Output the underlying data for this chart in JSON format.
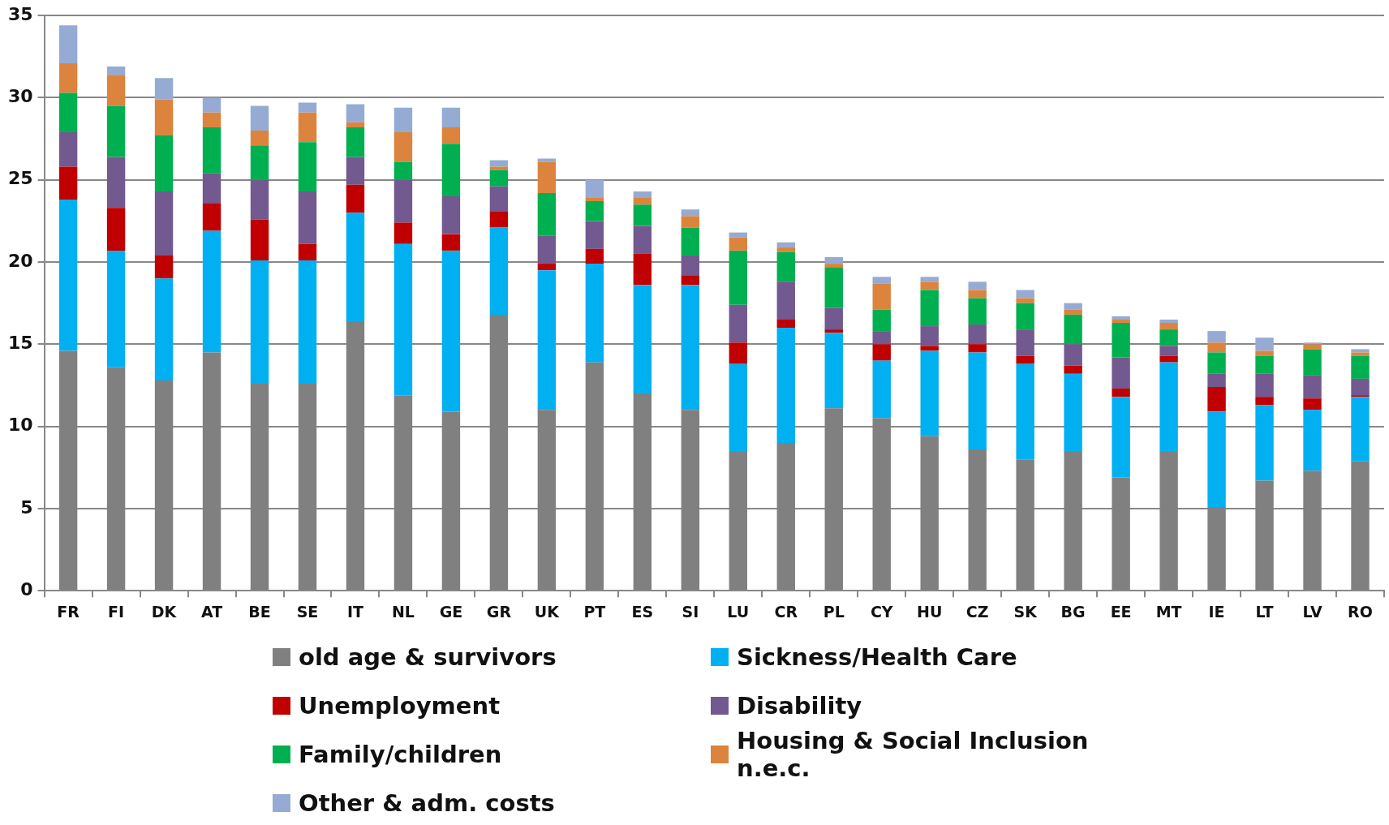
{
  "chart_data": {
    "type": "bar",
    "stacked": true,
    "grid": "y",
    "legend": "bottom",
    "categories": [
      "FR",
      "FI",
      "DK",
      "AT",
      "BE",
      "SE",
      "IT",
      "NL",
      "GE",
      "GR",
      "UK",
      "PT",
      "ES",
      "SI",
      "LU",
      "CR",
      "PL",
      "CY",
      "HU",
      "CZ",
      "SK",
      "BG",
      "EE",
      "MT",
      "IE",
      "LT",
      "LV",
      "RO"
    ],
    "ylim": [
      0,
      35
    ],
    "yticks": [
      0,
      5,
      10,
      15,
      20,
      25,
      30,
      35
    ],
    "series": [
      {
        "name": "old age & survivors",
        "color": "#808080",
        "values": [
          14.6,
          13.6,
          12.8,
          14.5,
          12.6,
          12.6,
          16.4,
          11.9,
          10.9,
          16.8,
          11.0,
          13.9,
          12.0,
          11.0,
          8.5,
          9.0,
          11.1,
          10.5,
          9.4,
          8.6,
          8.0,
          8.5,
          6.9,
          8.5,
          5.1,
          6.7,
          7.3,
          7.9
        ]
      },
      {
        "name": "Sickness/Health Care",
        "color": "#00b0f0",
        "values": [
          9.2,
          7.1,
          6.2,
          7.4,
          7.5,
          7.5,
          6.6,
          9.2,
          9.8,
          5.3,
          8.5,
          6.0,
          6.6,
          7.6,
          5.3,
          7.0,
          4.6,
          3.5,
          5.2,
          5.9,
          5.8,
          4.7,
          4.9,
          5.4,
          5.8,
          4.6,
          3.7,
          3.9
        ]
      },
      {
        "name": "Unemployment",
        "color": "#c00000",
        "values": [
          2.0,
          2.6,
          1.4,
          1.7,
          2.5,
          1.0,
          1.7,
          1.3,
          1.0,
          1.0,
          0.4,
          0.9,
          1.9,
          0.6,
          1.3,
          0.5,
          0.2,
          1.0,
          0.3,
          0.5,
          0.5,
          0.5,
          0.5,
          0.4,
          1.5,
          0.5,
          0.7,
          0.1
        ]
      },
      {
        "name": "Disability",
        "color": "#72598f",
        "values": [
          2.1,
          3.1,
          3.9,
          1.8,
          2.4,
          3.2,
          1.7,
          2.6,
          2.3,
          1.5,
          1.7,
          1.7,
          1.7,
          1.2,
          2.3,
          2.3,
          1.3,
          0.8,
          1.2,
          1.2,
          1.6,
          1.3,
          1.9,
          0.6,
          0.8,
          1.4,
          1.4,
          1.0
        ]
      },
      {
        "name": "Family/children",
        "color": "#00b050",
        "values": [
          2.4,
          3.1,
          3.4,
          2.8,
          2.1,
          3.0,
          1.8,
          1.1,
          3.2,
          1.0,
          2.6,
          1.2,
          1.3,
          1.7,
          3.3,
          1.8,
          2.5,
          1.3,
          2.2,
          1.6,
          1.6,
          1.8,
          2.1,
          1.0,
          1.3,
          1.1,
          1.6,
          1.4
        ]
      },
      {
        "name": "Housing & Social Inclusion n.e.c.",
        "color": "#dc843d",
        "values": [
          1.8,
          1.9,
          2.2,
          0.9,
          0.9,
          1.8,
          0.3,
          1.8,
          1.0,
          0.2,
          1.9,
          0.2,
          0.4,
          0.7,
          0.8,
          0.3,
          0.2,
          1.6,
          0.5,
          0.5,
          0.3,
          0.3,
          0.2,
          0.4,
          0.6,
          0.3,
          0.3,
          0.2
        ]
      },
      {
        "name": "Other & adm. costs",
        "color": "#95abd4",
        "values": [
          2.3,
          0.5,
          1.3,
          0.9,
          1.5,
          0.6,
          1.1,
          1.5,
          1.2,
          0.4,
          0.2,
          1.1,
          0.4,
          0.4,
          0.3,
          0.3,
          0.4,
          0.4,
          0.3,
          0.5,
          0.5,
          0.4,
          0.2,
          0.2,
          0.7,
          0.8,
          0.1,
          0.2
        ]
      }
    ]
  }
}
